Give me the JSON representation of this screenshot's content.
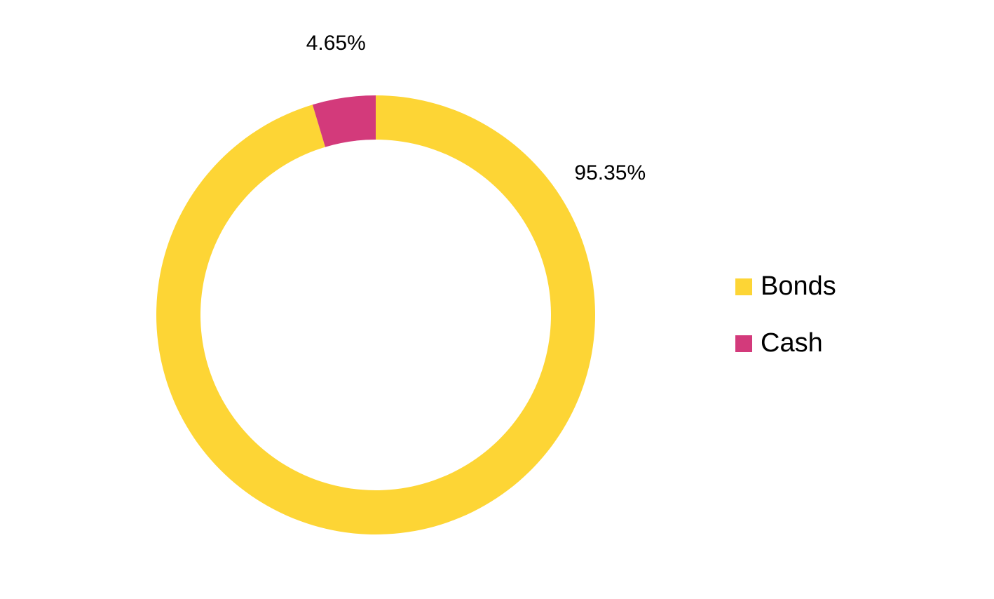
{
  "chart_data": {
    "type": "donut",
    "categories": [
      "Bonds",
      "Cash"
    ],
    "values": [
      95.35,
      4.65
    ],
    "value_labels": [
      "95.35%",
      "4.65%"
    ],
    "colors": [
      "#fdd535",
      "#d33a7b"
    ],
    "legend": "right"
  }
}
